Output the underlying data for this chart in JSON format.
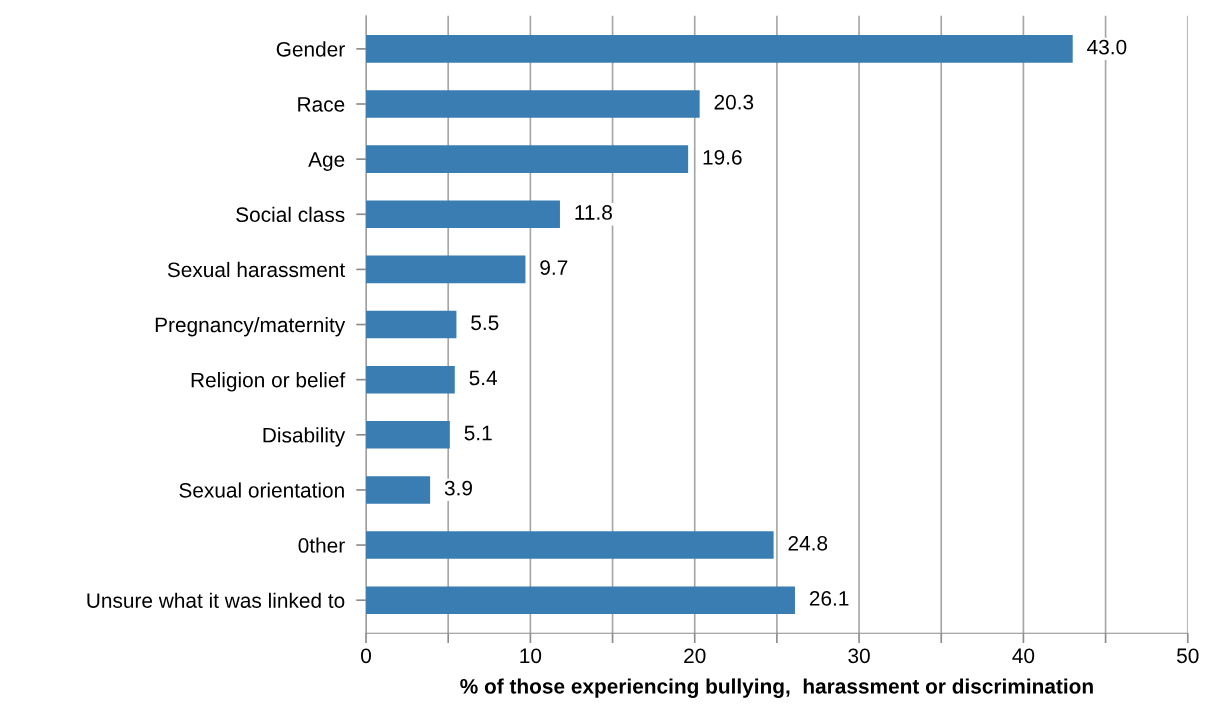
{
  "chart_data": {
    "type": "bar",
    "orientation": "horizontal",
    "xlabel": "% of those experiencing bullying,  harassment or discrimination",
    "categories": [
      "Gender",
      "Race",
      "Age",
      "Social class",
      "Sexual harassment",
      "Pregnancy/maternity",
      "Religion or belief",
      "Disability",
      "Sexual orientation",
      "0ther",
      "Unsure what it was linked to"
    ],
    "values": [
      43.0,
      20.3,
      19.6,
      11.8,
      9.7,
      5.5,
      5.4,
      5.1,
      3.9,
      24.8,
      26.1
    ],
    "color": "#3a7db3",
    "xlim": [
      0,
      50
    ],
    "xticks": [
      0,
      {
        "value": 5,
        "label": null
      },
      10,
      {
        "value": 15,
        "label": null
      },
      20,
      {
        "value": 25,
        "label": null
      },
      30,
      {
        "value": 35,
        "label": null
      },
      40,
      {
        "value": 45,
        "label": null
      },
      50
    ],
    "value_labels": [
      "43.0",
      "20.3",
      "19.6",
      "11.8",
      "9.7",
      "5.5",
      "5.4",
      "5.1",
      "3.9",
      "24.8",
      "26.1"
    ],
    "grid": "x"
  }
}
